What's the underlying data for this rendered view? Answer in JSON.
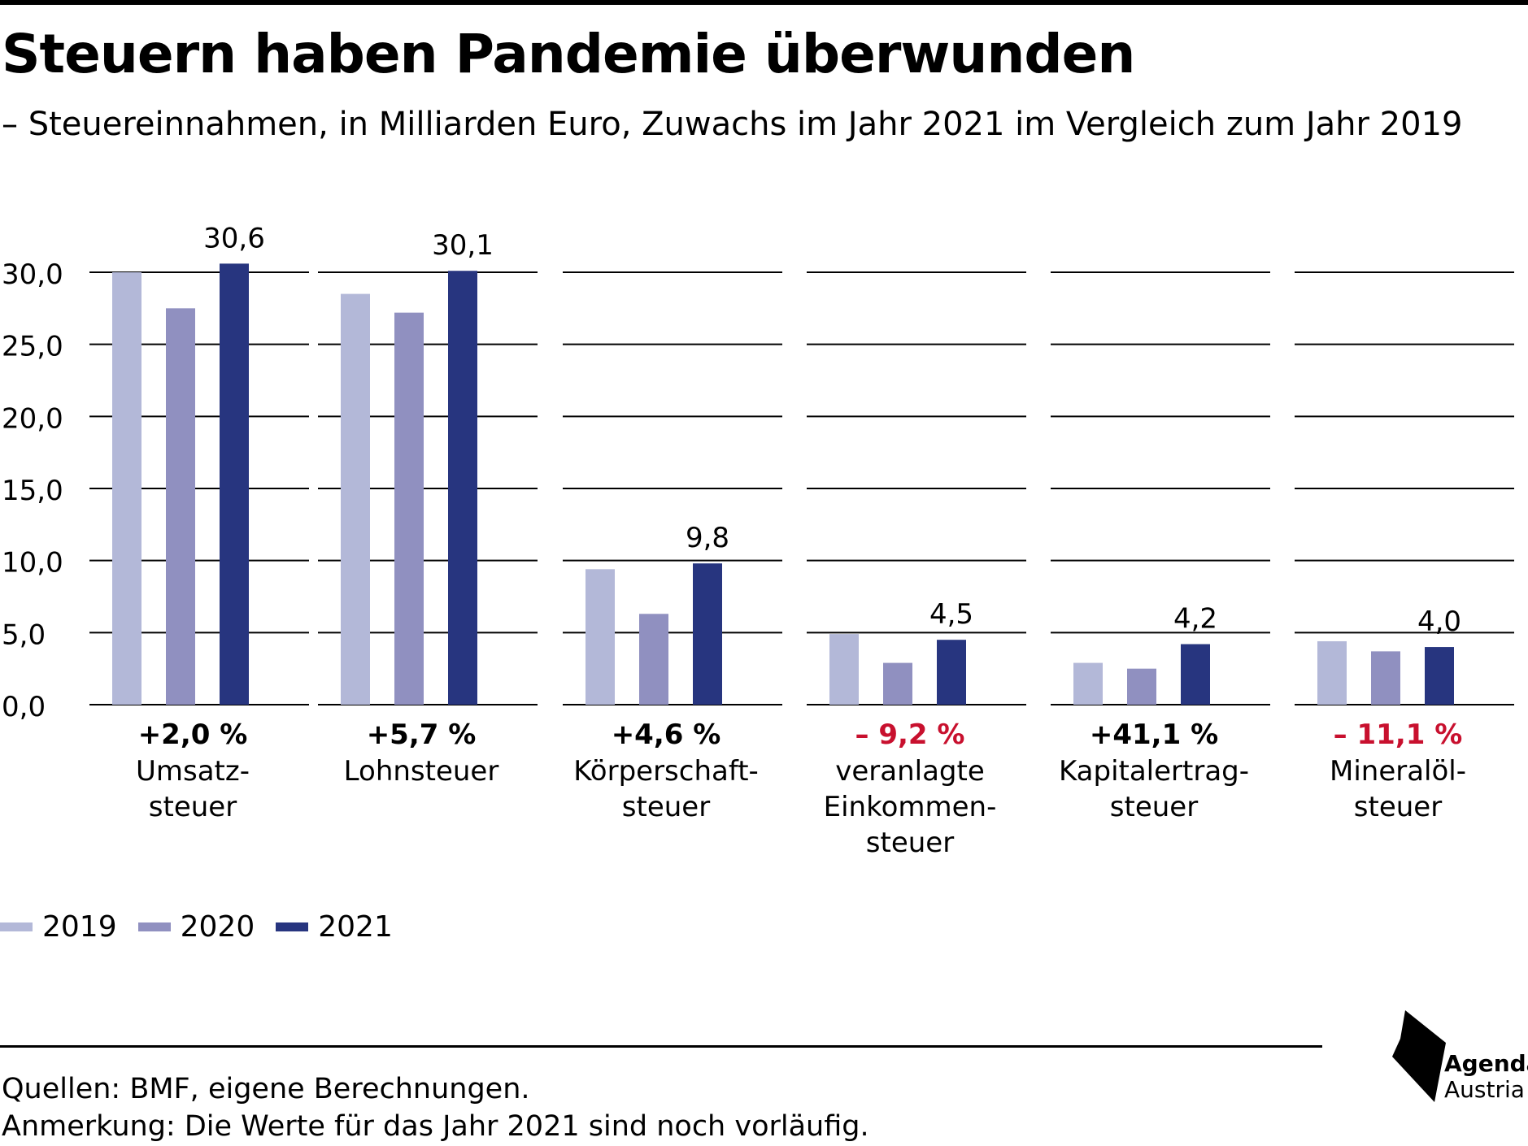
{
  "header": {
    "title": "Steuern haben Pandemie überwunden",
    "subtitle": "– Steuereinnahmen, in Milliarden Euro, Zuwachs im Jahr 2021 im Vergleich zum Jahr 2019"
  },
  "chart_data": {
    "type": "bar",
    "title": "Steuern haben Pandemie überwunden",
    "subtitle": "– Steuereinnahmen, in Milliarden Euro, Zuwachs im Jahr 2021 im Vergleich zum Jahr 2019",
    "ylim": [
      0,
      30
    ],
    "yticks": [
      0,
      5,
      10,
      15,
      20,
      25,
      30
    ],
    "ytick_labels": [
      "0,0",
      "5,0",
      "10,0",
      "15,0",
      "20,0",
      "25,0",
      "30,0"
    ],
    "grid": true,
    "legend_position": "bottom-left",
    "categories": [
      {
        "label_lines": [
          "Umsatz-",
          "steuer"
        ],
        "change": "+2,0 %",
        "change_color": "#000000",
        "value_label": "30,6"
      },
      {
        "label_lines": [
          "Lohnsteuer"
        ],
        "change": "+5,7 %",
        "change_color": "#000000",
        "value_label": "30,1"
      },
      {
        "label_lines": [
          "Körperschaft-",
          "steuer"
        ],
        "change": "+4,6 %",
        "change_color": "#000000",
        "value_label": "9,8"
      },
      {
        "label_lines": [
          "veranlagte",
          "Einkommen-",
          "steuer"
        ],
        "change": "– 9,2 %",
        "change_color": "#c8102e",
        "value_label": "4,5"
      },
      {
        "label_lines": [
          "Kapitalertrag-",
          "steuer"
        ],
        "change": "+41,1 %",
        "change_color": "#000000",
        "value_label": "4,2"
      },
      {
        "label_lines": [
          "Mineralöl-",
          "steuer"
        ],
        "change": "– 11,1 %",
        "change_color": "#c8102e",
        "value_label": "4,0"
      }
    ],
    "series": [
      {
        "name": "2019",
        "color": "#b3b8d8",
        "values": [
          30.0,
          28.5,
          9.4,
          4.9,
          2.9,
          4.4
        ]
      },
      {
        "name": "2020",
        "color": "#9090c0",
        "values": [
          27.5,
          27.2,
          6.3,
          2.9,
          2.5,
          3.7
        ]
      },
      {
        "name": "2021",
        "color": "#27357f",
        "values": [
          30.6,
          30.1,
          9.8,
          4.5,
          4.2,
          4.0
        ]
      }
    ]
  },
  "footer": {
    "source": "Quellen: BMF, eigene Berechnungen.",
    "note": "Anmerkung: Die Werte für das Jahr 2021 sind noch vorläufig."
  },
  "logo": {
    "line1": "Agenda",
    "line2": "Austria"
  }
}
